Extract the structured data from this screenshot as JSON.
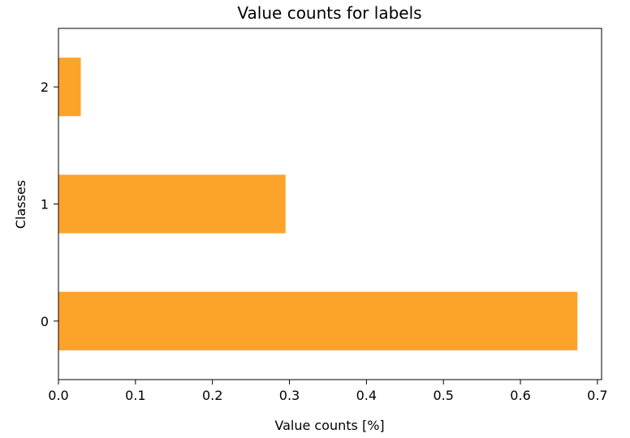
{
  "chart_data": {
    "type": "bar",
    "orientation": "horizontal",
    "title": "Value counts for labels",
    "xlabel": "Value counts [%]",
    "ylabel": "Classes",
    "categories": [
      "0",
      "1",
      "2"
    ],
    "values": [
      0.674,
      0.295,
      0.029
    ],
    "xlim": [
      0.0,
      0.7054
    ],
    "x_ticks": [
      "0.0",
      "0.1",
      "0.2",
      "0.3",
      "0.4",
      "0.5",
      "0.6",
      "0.7"
    ],
    "grid": false,
    "legend": "none",
    "bar_color": "#fca32c"
  }
}
